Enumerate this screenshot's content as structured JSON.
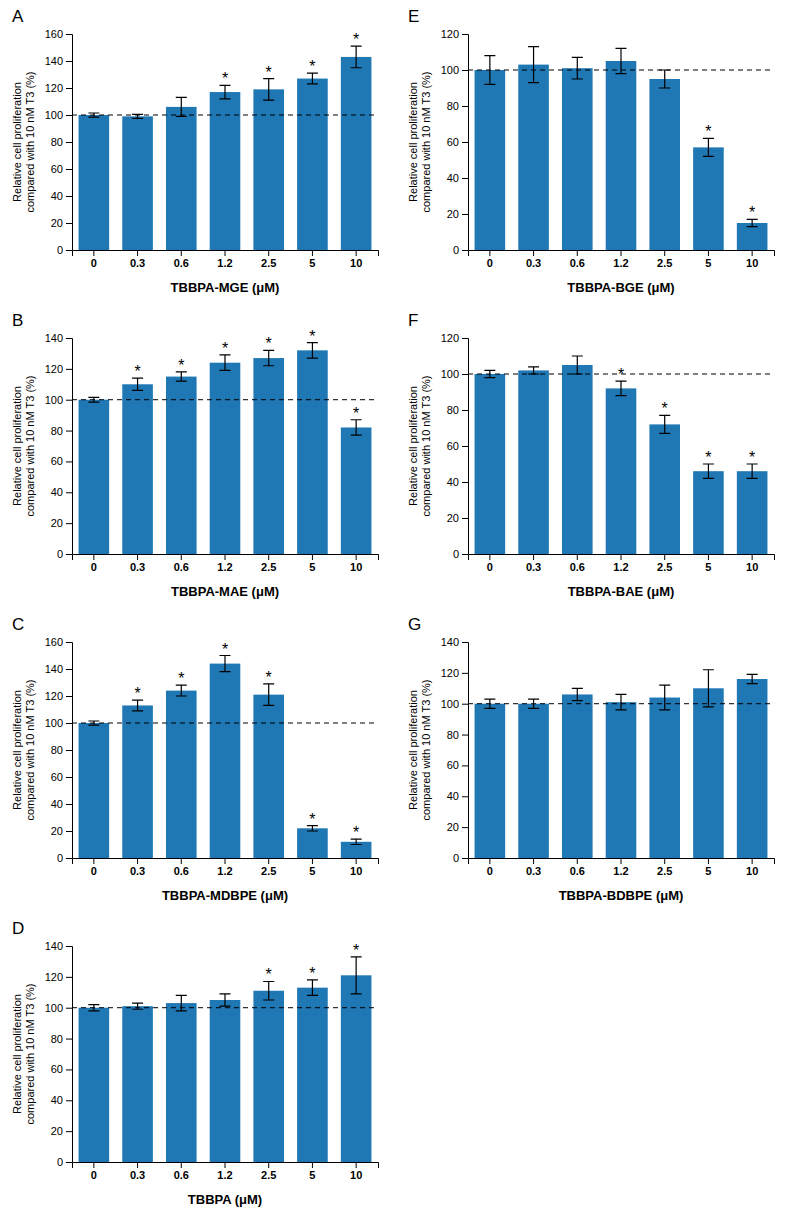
{
  "chart_data": [
    {
      "type": "bar",
      "title": "A",
      "xlabel": "TBBPA-MGE (μM)",
      "ylabel": "Relative cell proliferation\ncompared with 10 nM T3 (%)",
      "categories": [
        "0",
        "0.3",
        "0.6",
        "1.2",
        "2.5",
        "5",
        "10"
      ],
      "values": [
        100,
        99,
        106,
        117,
        119,
        127,
        143
      ],
      "errors": [
        1.5,
        1.5,
        7,
        5,
        8,
        4,
        8
      ],
      "significance": [
        null,
        null,
        null,
        "*",
        "*",
        "*",
        "*"
      ],
      "reference_y": 100,
      "ylim": [
        0,
        160
      ],
      "yticks": [
        0,
        20,
        40,
        60,
        80,
        100,
        120,
        140,
        160
      ],
      "grid": false
    },
    {
      "type": "bar",
      "title": "B",
      "xlabel": "TBBPA-MAE (μM)",
      "ylabel": "Relative cell proliferation\ncompared with 10 nM T3 (%)",
      "categories": [
        "0",
        "0.3",
        "0.6",
        "1.2",
        "2.5",
        "5",
        "10"
      ],
      "values": [
        100,
        110,
        115,
        124,
        127,
        132,
        82
      ],
      "errors": [
        1.5,
        4,
        3,
        5,
        5,
        5,
        5
      ],
      "significance": [
        null,
        "*",
        "*",
        "*",
        "*",
        "*",
        "*"
      ],
      "reference_y": 100,
      "ylim": [
        0,
        140
      ],
      "yticks": [
        0,
        20,
        40,
        60,
        80,
        100,
        120,
        140
      ],
      "grid": false
    },
    {
      "type": "bar",
      "title": "C",
      "xlabel": "TBBPA-MDBPE (μM)",
      "ylabel": "Relative cell proliferation\ncompared with 10 nM T3 (%)",
      "categories": [
        "0",
        "0.3",
        "0.6",
        "1.2",
        "2.5",
        "5",
        "10"
      ],
      "values": [
        100,
        113,
        124,
        144,
        121,
        22,
        12
      ],
      "errors": [
        1.5,
        4,
        4,
        6,
        8,
        2,
        2
      ],
      "significance": [
        null,
        "*",
        "*",
        "*",
        "*",
        "*",
        "*"
      ],
      "reference_y": 100,
      "ylim": [
        0,
        160
      ],
      "yticks": [
        0,
        20,
        40,
        60,
        80,
        100,
        120,
        140,
        160
      ],
      "grid": false
    },
    {
      "type": "bar",
      "title": "D",
      "xlabel": "TBBPA (μM)",
      "ylabel": "Relative cell proliferation\ncompared with 10 nM T3 (%)",
      "categories": [
        "0",
        "0.3",
        "0.6",
        "1.2",
        "2.5",
        "5",
        "10"
      ],
      "values": [
        100,
        101,
        103,
        105,
        111,
        113,
        121
      ],
      "errors": [
        2,
        2,
        5,
        4,
        6,
        5,
        12
      ],
      "significance": [
        null,
        null,
        null,
        null,
        "*",
        "*",
        "*"
      ],
      "reference_y": 100,
      "ylim": [
        0,
        140
      ],
      "yticks": [
        0,
        20,
        40,
        60,
        80,
        100,
        120,
        140
      ],
      "grid": false
    },
    {
      "type": "bar",
      "title": "E",
      "xlabel": "TBBPA-BGE (μM)",
      "ylabel": "Relative cell proliferation\ncompared with 10 nM T3 (%)",
      "categories": [
        "0",
        "0.3",
        "0.6",
        "1.2",
        "2.5",
        "5",
        "10"
      ],
      "values": [
        100,
        103,
        101,
        105,
        95,
        57,
        15
      ],
      "errors": [
        8,
        10,
        6,
        7,
        5,
        5,
        2
      ],
      "significance": [
        null,
        null,
        null,
        null,
        null,
        "*",
        "*"
      ],
      "reference_y": 100,
      "ylim": [
        0,
        120
      ],
      "yticks": [
        0,
        20,
        40,
        60,
        80,
        100,
        120
      ],
      "grid": false
    },
    {
      "type": "bar",
      "title": "F",
      "xlabel": "TBBPA-BAE (μM)",
      "ylabel": "Relative cell proliferation\ncompared with 10 nM T3 (%)",
      "categories": [
        "0",
        "0.3",
        "0.6",
        "1.2",
        "2.5",
        "5",
        "10"
      ],
      "values": [
        100,
        102,
        105,
        92,
        72,
        46,
        46
      ],
      "errors": [
        2,
        2,
        5,
        4,
        5,
        4,
        4
      ],
      "significance": [
        null,
        null,
        null,
        "*",
        "*",
        "*",
        "*"
      ],
      "reference_y": 100,
      "ylim": [
        0,
        120
      ],
      "yticks": [
        0,
        20,
        40,
        60,
        80,
        100,
        120
      ],
      "grid": false
    },
    {
      "type": "bar",
      "title": "G",
      "xlabel": "TBBPA-BDBPE (μM)",
      "ylabel": "Relative cell proliferation\ncompared with 10 nM T3 (%)",
      "categories": [
        "0",
        "0.3",
        "0.6",
        "1.2",
        "2.5",
        "5",
        "10"
      ],
      "values": [
        100,
        100,
        106,
        101,
        104,
        110,
        116
      ],
      "errors": [
        3,
        3,
        4,
        5,
        8,
        12,
        3
      ],
      "significance": [
        null,
        null,
        null,
        null,
        null,
        null,
        null
      ],
      "reference_y": 100,
      "ylim": [
        0,
        140
      ],
      "yticks": [
        0,
        20,
        40,
        60,
        80,
        100,
        120,
        140
      ],
      "grid": false
    }
  ]
}
